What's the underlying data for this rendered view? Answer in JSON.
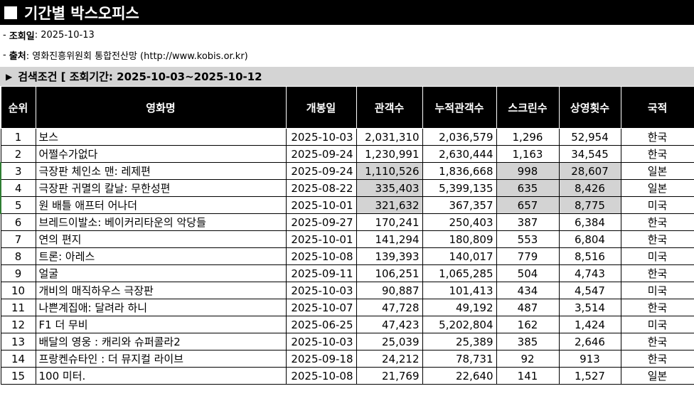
{
  "title": "기간별 박스오피스",
  "query_date_label": "조회일",
  "query_date": ": 2025-10-13",
  "source_label": "출처",
  "source": ": 영화진흥위원회 통합전산망 (http://www.kobis.or.kr)",
  "search": {
    "text": "검색조건 [ 조회기간: 2025-10-03~2025-10-12"
  },
  "table": {
    "headers": [
      "순위",
      "영화명",
      "개봉일",
      "관객수",
      "누적관객수",
      "스크린수",
      "상영횟수",
      "국적"
    ],
    "rows": [
      {
        "rank": "1",
        "title": "보스",
        "open": "2025-10-03",
        "audience": "2,031,310",
        "cum": "2,036,579",
        "screens": "1,296",
        "shows": "52,954",
        "nation": "한국"
      },
      {
        "rank": "2",
        "title": "어쩔수가없다",
        "open": "2025-09-24",
        "audience": "1,230,991",
        "cum": "2,630,444",
        "screens": "1,163",
        "shows": "34,545",
        "nation": "한국"
      },
      {
        "rank": "3",
        "title": "극장판 체인소 맨: 레제편",
        "open": "2025-09-24",
        "audience": "1,110,526",
        "cum": "1,836,668",
        "screens": "998",
        "shows": "28,607",
        "nation": "일본"
      },
      {
        "rank": "4",
        "title": "극장판 귀멸의 칼날: 무한성편",
        "open": "2025-08-22",
        "audience": "335,403",
        "cum": "5,399,135",
        "screens": "635",
        "shows": "8,426",
        "nation": "일본"
      },
      {
        "rank": "5",
        "title": "원 배틀 애프터 어나더",
        "open": "2025-10-01",
        "audience": "321,632",
        "cum": "367,357",
        "screens": "657",
        "shows": "8,775",
        "nation": "미국"
      },
      {
        "rank": "6",
        "title": "브레드이발소: 베이커리타운의 악당들",
        "open": "2025-09-27",
        "audience": "170,241",
        "cum": "250,403",
        "screens": "387",
        "shows": "6,384",
        "nation": "한국"
      },
      {
        "rank": "7",
        "title": "연의 편지",
        "open": "2025-10-01",
        "audience": "141,294",
        "cum": "180,809",
        "screens": "553",
        "shows": "6,804",
        "nation": "한국"
      },
      {
        "rank": "8",
        "title": "트론: 아레스",
        "open": "2025-10-08",
        "audience": "139,393",
        "cum": "140,017",
        "screens": "779",
        "shows": "8,516",
        "nation": "미국"
      },
      {
        "rank": "9",
        "title": "얼굴",
        "open": "2025-09-11",
        "audience": "106,251",
        "cum": "1,065,285",
        "screens": "504",
        "shows": "4,743",
        "nation": "한국"
      },
      {
        "rank": "10",
        "title": "개비의 매직하우스 극장판",
        "open": "2025-10-03",
        "audience": "90,887",
        "cum": "101,413",
        "screens": "434",
        "shows": "4,547",
        "nation": "미국"
      },
      {
        "rank": "11",
        "title": "나쁜계집애: 달려라 하니",
        "open": "2025-10-07",
        "audience": "47,728",
        "cum": "49,192",
        "screens": "487",
        "shows": "3,514",
        "nation": "한국"
      },
      {
        "rank": "12",
        "title": "F1 더 무비",
        "open": "2025-06-25",
        "audience": "47,423",
        "cum": "5,202,804",
        "screens": "162",
        "shows": "1,424",
        "nation": "미국"
      },
      {
        "rank": "13",
        "title": "배달의 영웅 : 캐리와 슈퍼콜라2",
        "open": "2025-10-03",
        "audience": "25,039",
        "cum": "25,389",
        "screens": "385",
        "shows": "2,646",
        "nation": "한국"
      },
      {
        "rank": "14",
        "title": "프랑켄슈타인 : 더 뮤지컬 라이브",
        "open": "2025-09-18",
        "audience": "24,212",
        "cum": "78,731",
        "screens": "92",
        "shows": "913",
        "nation": "한국"
      },
      {
        "rank": "15",
        "title": "100 미터.",
        "open": "2025-10-08",
        "audience": "21,769",
        "cum": "22,640",
        "screens": "141",
        "shows": "1,527",
        "nation": "일본"
      }
    ]
  },
  "colors": {
    "header_bg": "#000000",
    "search_bg": "#d4d4d4",
    "highlight": "#d3d3d3",
    "row_marker": "#2e7d32"
  }
}
